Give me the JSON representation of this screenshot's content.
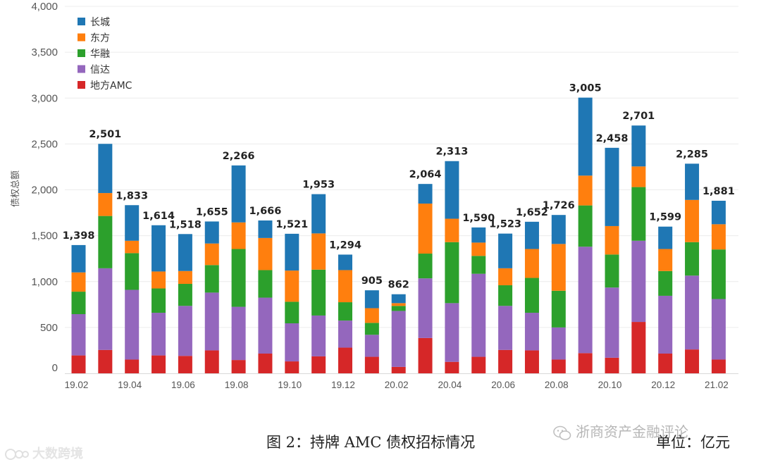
{
  "chart_data": {
    "type": "bar",
    "stacked": true,
    "ylabel": "债权总额",
    "ylim": [
      0,
      4000
    ],
    "yticks": [
      "0",
      "500",
      "1,000",
      "1,500",
      "2,000",
      "2,500",
      "3,000",
      "3,500",
      "4,000"
    ],
    "legend_position": "top-left",
    "categories": [
      "19.02",
      "19.03",
      "19.04",
      "19.05",
      "19.06",
      "19.07",
      "19.08",
      "19.09",
      "19.10",
      "19.11",
      "19.12",
      "20.01",
      "20.02",
      "20.03",
      "20.04",
      "20.05",
      "20.06",
      "20.07",
      "20.08",
      "20.09",
      "20.10",
      "20.11",
      "20.12",
      "21.01",
      "21.02"
    ],
    "xtick_labels": [
      "19.02",
      "",
      "19.04",
      "",
      "19.06",
      "",
      "19.08",
      "",
      "19.10",
      "",
      "19.12",
      "",
      "20.02",
      "",
      "20.04",
      "",
      "20.06",
      "",
      "20.08",
      "",
      "20.10",
      "",
      "20.12",
      "",
      "21.02"
    ],
    "totals": [
      "1,398",
      "2,501",
      "1,833",
      "1,614",
      "1,518",
      "1,655",
      "2,266",
      "1,666",
      "1,521",
      "1,953",
      "1,294",
      "905",
      "862",
      "2,064",
      "2,313",
      "1,590",
      "1,523",
      "1,652",
      "1,726",
      "3,005",
      "2,458",
      "2,701",
      "1,599",
      "2,285",
      "1,881"
    ],
    "series": [
      {
        "name": "地方AMC",
        "color": "#d62728",
        "values": [
          195,
          255,
          150,
          195,
          190,
          250,
          145,
          215,
          130,
          185,
          280,
          180,
          70,
          385,
          125,
          180,
          255,
          250,
          150,
          220,
          170,
          560,
          215,
          260,
          150
        ]
      },
      {
        "name": "信达",
        "color": "#9467bd",
        "values": [
          450,
          890,
          760,
          465,
          545,
          630,
          580,
          610,
          415,
          445,
          295,
          240,
          610,
          650,
          640,
          905,
          480,
          410,
          350,
          1160,
          765,
          885,
          630,
          805,
          660
        ]
      },
      {
        "name": "华融",
        "color": "#2ca02c",
        "values": [
          245,
          570,
          400,
          265,
          240,
          300,
          630,
          300,
          235,
          500,
          200,
          130,
          55,
          270,
          665,
          195,
          225,
          380,
          400,
          450,
          360,
          585,
          270,
          365,
          540
        ]
      },
      {
        "name": "东方",
        "color": "#ff7f0e",
        "values": [
          210,
          250,
          135,
          185,
          140,
          235,
          290,
          350,
          340,
          395,
          350,
          160,
          30,
          545,
          255,
          145,
          185,
          315,
          510,
          325,
          310,
          225,
          240,
          460,
          275
        ]
      },
      {
        "name": "长城",
        "color": "#1f77b4",
        "values": [
          298,
          536,
          388,
          504,
          403,
          240,
          621,
          191,
          401,
          428,
          169,
          195,
          97,
          214,
          628,
          165,
          378,
          297,
          316,
          850,
          853,
          446,
          244,
          395,
          256
        ]
      }
    ]
  },
  "caption": "图 2：持牌 AMC 债权招标情况",
  "unit": "单位：亿元",
  "watermark_wechat": "浙商资产金融评论",
  "watermark_corner": "大数跨境"
}
